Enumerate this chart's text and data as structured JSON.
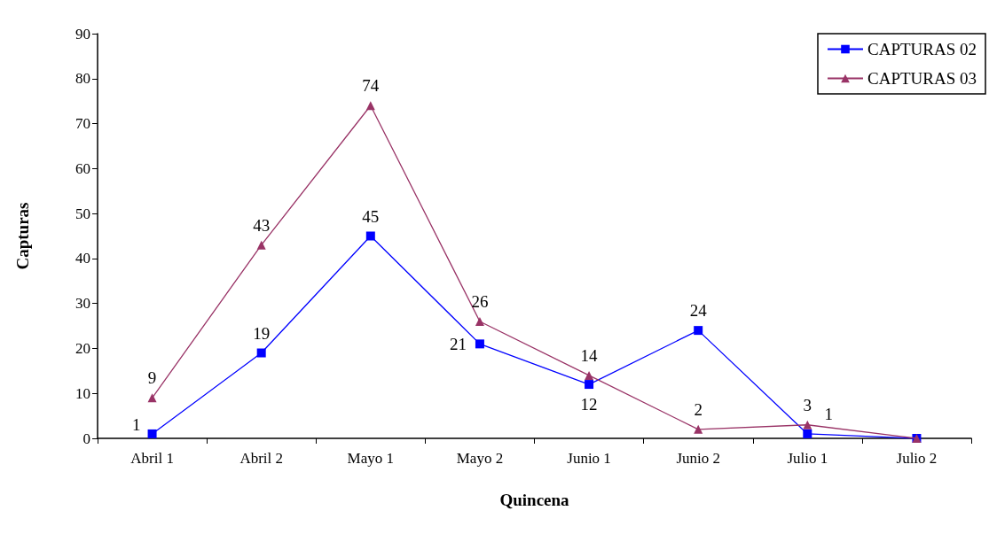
{
  "chart_data": {
    "type": "line",
    "xlabel": "Quincena",
    "ylabel": "Capturas",
    "categories": [
      "Abril 1",
      "Abril 2",
      "Mayo 1",
      "Mayo 2",
      "Junio 1",
      "Junio 2",
      "Julio 1",
      "Julio 2"
    ],
    "series": [
      {
        "name": "CAPTURAS 02",
        "color": "#0000ff",
        "marker": "square",
        "values": [
          1,
          19,
          45,
          21,
          12,
          24,
          1,
          0
        ],
        "value_labels": [
          "1",
          "19",
          "45",
          "21",
          "12",
          "24",
          "1",
          null
        ]
      },
      {
        "name": "CAPTURAS 03",
        "color": "#993366",
        "marker": "triangle",
        "values": [
          9,
          43,
          74,
          26,
          14,
          2,
          3,
          0
        ],
        "value_labels": [
          "9",
          "43",
          "74",
          "26",
          "14",
          "2",
          "3",
          null
        ]
      }
    ],
    "ylim": [
      0,
      90
    ],
    "yticks": [
      0,
      10,
      20,
      30,
      40,
      50,
      60,
      70,
      80,
      90
    ],
    "legend": "top right",
    "grid": false,
    "line_style": "solid"
  }
}
